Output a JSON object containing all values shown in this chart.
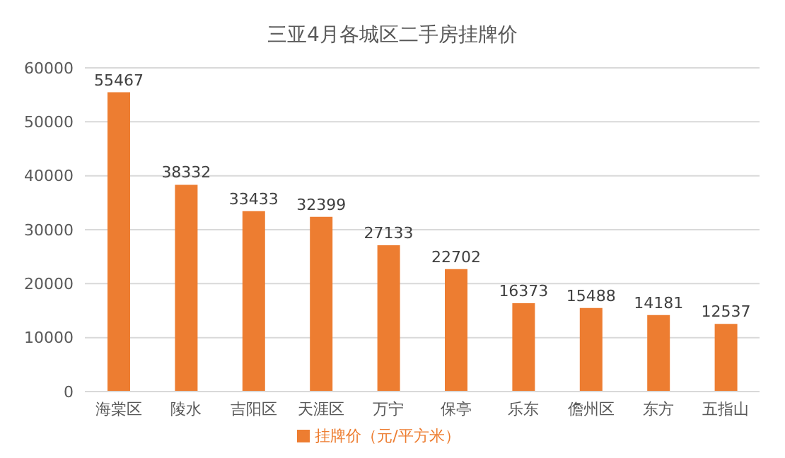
{
  "chart_data": {
    "type": "bar",
    "title": "三亚4月各城区二手房挂牌价",
    "categories": [
      "海棠区",
      "陵水",
      "吉阳区",
      "天涯区",
      "万宁",
      "保亭",
      "乐东",
      "儋州区",
      "东方",
      "五指山"
    ],
    "series": [
      {
        "name": "挂牌价（元/平方米）",
        "color": "#ed7d31",
        "values": [
          55467,
          38332,
          33433,
          32399,
          27133,
          22702,
          16373,
          15488,
          14181,
          12537
        ]
      }
    ],
    "ylim": [
      0,
      60000
    ],
    "yticks": [
      0,
      10000,
      20000,
      30000,
      40000,
      50000,
      60000
    ],
    "grid": "y",
    "legend": "bottom",
    "data_labels": true
  }
}
